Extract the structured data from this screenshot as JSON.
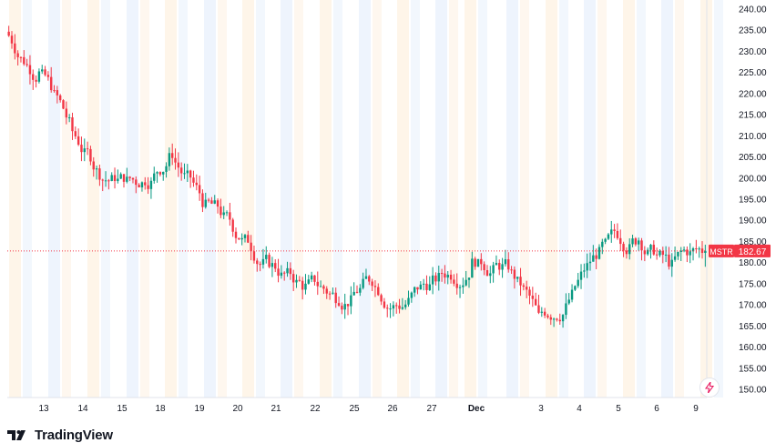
{
  "brand": {
    "name": "TradingView"
  },
  "chart_data": {
    "type": "candlestick",
    "symbol": "MSTR",
    "last_price": "182.67",
    "y_range": [
      148,
      242
    ],
    "y_ticks": [
      "240.00",
      "235.00",
      "230.00",
      "225.00",
      "220.00",
      "215.00",
      "210.00",
      "205.00",
      "200.00",
      "195.00",
      "190.00",
      "185.00",
      "180.00",
      "175.00",
      "170.00",
      "165.00",
      "160.00",
      "155.00",
      "150.00"
    ],
    "x_labels": [
      "13",
      "14",
      "15",
      "18",
      "19",
      "20",
      "21",
      "22",
      "25",
      "26",
      "27",
      "Dec",
      "3",
      "4",
      "5",
      "6",
      "9"
    ],
    "colors": {
      "up": "#089981",
      "down": "#f23645",
      "last_line": "#f23645",
      "axis_text": "#131722"
    },
    "daily_closes": [
      230.5,
      224.5,
      211.0,
      199.5,
      199.0,
      206.0,
      193.0,
      186.0,
      179.0,
      174.0,
      171.5,
      176.0,
      170.0,
      176.0,
      179.5,
      179.0,
      167.0,
      172.0,
      184.0,
      185.5,
      179.0,
      182.67
    ]
  },
  "icons": {
    "lightning": "lightning-icon",
    "logo": "tradingview-logo-icon"
  }
}
